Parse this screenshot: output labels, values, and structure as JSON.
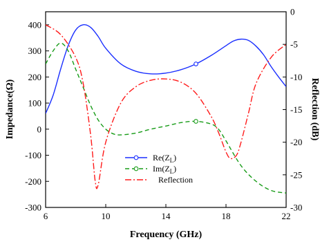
{
  "chart_data": {
    "type": "line",
    "xlabel": "Frequency (GHz)",
    "ylabel_left": "Impedance(Ω)",
    "ylabel_right": "Reflection (dB)",
    "xlim": [
      6,
      22
    ],
    "ylim_left": [
      -300,
      450
    ],
    "ylim_right": [
      -30,
      0
    ],
    "x_ticks": [
      6,
      10,
      14,
      18,
      22
    ],
    "y_left_ticks": [
      -300,
      -200,
      -100,
      0,
      100,
      200,
      300,
      400
    ],
    "y_right_ticks": [
      -30,
      -25,
      -20,
      -15,
      -10,
      -5,
      0
    ],
    "legend_position": "center-bottom",
    "series": [
      {
        "name": "Re(Z_L)",
        "label_main": "Re(Z",
        "label_sub": "L",
        "label_end": ")",
        "axis": "left",
        "color": "#1a2fff",
        "style": "solid",
        "marker": "circle-open",
        "marker_x": [
          16
        ],
        "x": [
          6,
          6.5,
          7,
          7.5,
          8,
          8.5,
          9,
          9.5,
          10,
          11,
          12,
          13,
          14,
          15,
          16,
          17,
          18,
          18.5,
          19,
          19.5,
          20,
          20.5,
          21,
          21.5,
          22
        ],
        "y": [
          60,
          130,
          230,
          320,
          380,
          400,
          390,
          355,
          310,
          250,
          222,
          212,
          215,
          228,
          250,
          282,
          320,
          338,
          345,
          340,
          318,
          285,
          240,
          200,
          163
        ]
      },
      {
        "name": "Im(Z_L)",
        "label_main": "Im(Z",
        "label_sub": "L",
        "label_end": ")",
        "axis": "left",
        "color": "#169b16",
        "style": "dashed",
        "marker": "circle-open",
        "marker_x": [
          16
        ],
        "x": [
          6,
          6.5,
          7,
          7.5,
          8,
          8.5,
          9,
          9.5,
          10,
          10.5,
          11,
          12,
          13,
          14,
          15,
          16,
          17,
          17.5,
          18,
          19,
          20,
          21,
          22
        ],
        "y": [
          250,
          300,
          330,
          300,
          230,
          160,
          90,
          35,
          0,
          -18,
          -22,
          -15,
          0,
          12,
          25,
          30,
          20,
          0,
          -45,
          -140,
          -200,
          -235,
          -245
        ]
      },
      {
        "name": "Reflection",
        "axis": "right",
        "color": "#ff1a1a",
        "style": "dashdot",
        "marker": "none",
        "x": [
          6,
          7,
          8,
          8.5,
          9,
          9.3,
          9.5,
          10,
          11,
          12,
          13,
          14,
          15,
          16,
          17,
          17.5,
          18,
          18.3,
          18.7,
          19,
          19.5,
          20,
          21,
          22
        ],
        "y": [
          -2,
          -3.5,
          -7,
          -11,
          -19,
          -26,
          -26.5,
          -20,
          -14,
          -11.5,
          -10.5,
          -10.3,
          -10.8,
          -12.5,
          -16,
          -18.5,
          -21.5,
          -22.5,
          -22,
          -20,
          -15.5,
          -11,
          -7,
          -5
        ]
      }
    ]
  }
}
